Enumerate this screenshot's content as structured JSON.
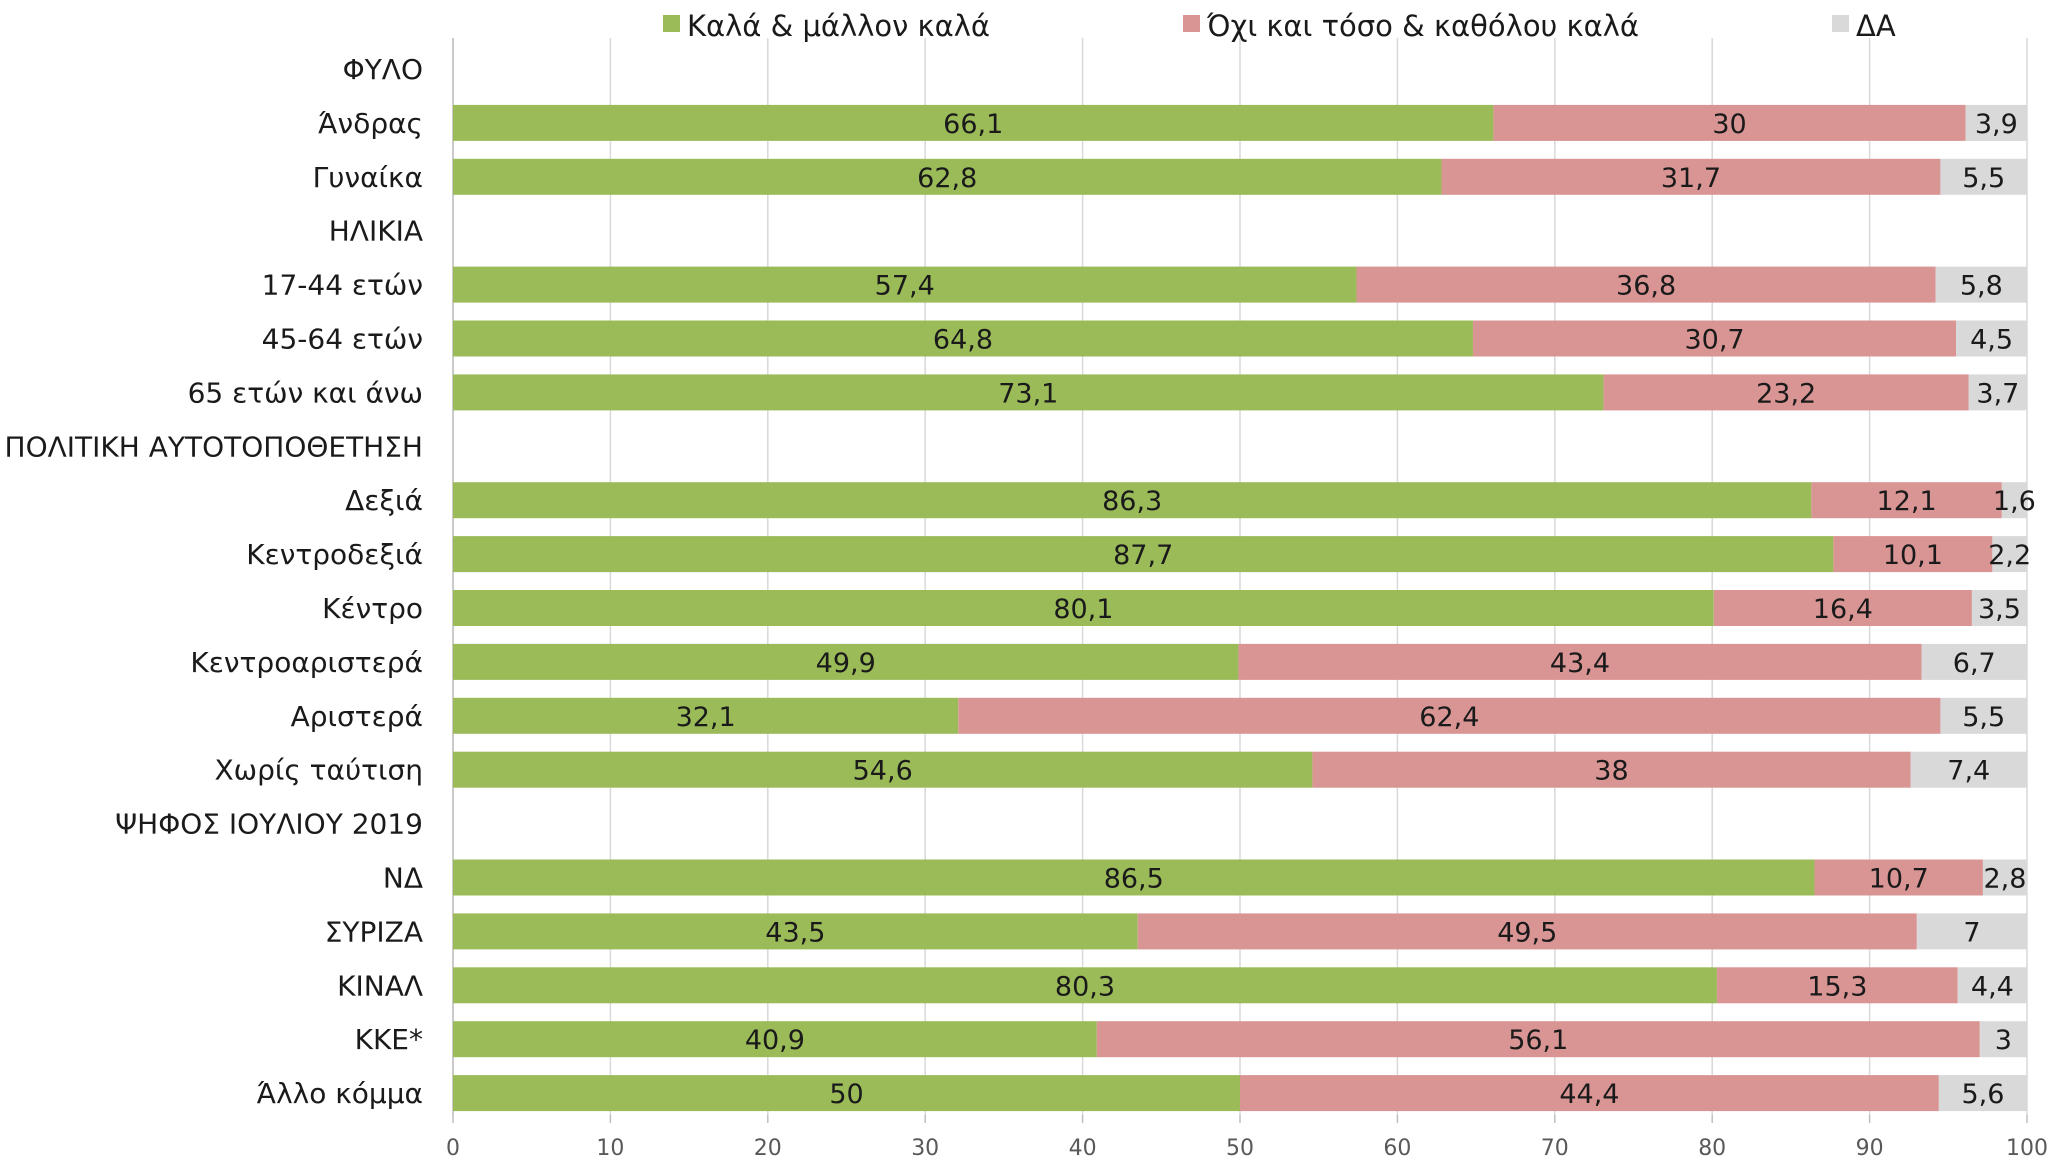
{
  "colors": {
    "good": "#9bbb59",
    "bad": "#d99594",
    "na": "#d9d9d9",
    "grid": "#d9d9d9",
    "axis": "#bfbfbf"
  },
  "chart_data": {
    "type": "bar",
    "orientation": "horizontal",
    "stacked": true,
    "xlim": [
      0,
      100
    ],
    "x_ticks": [
      "0",
      "10",
      "20",
      "30",
      "40",
      "50",
      "60",
      "70",
      "80",
      "90",
      "100"
    ],
    "grid": true,
    "legend_position": "top",
    "series": [
      {
        "name": "Καλά & μάλλον καλά",
        "color": "#9bbb59"
      },
      {
        "name": "Όχι και τόσο & καθόλου καλά",
        "color": "#d99594"
      },
      {
        "name": "ΔΑ",
        "color": "#d9d9d9"
      }
    ],
    "rows": [
      {
        "label": "ΦΥΛΟ",
        "header": true
      },
      {
        "label": "Άνδρας",
        "values": [
          66.1,
          30,
          3.9
        ],
        "labels": [
          "66,1",
          "30",
          "3,9"
        ]
      },
      {
        "label": "Γυναίκα",
        "values": [
          62.8,
          31.7,
          5.5
        ],
        "labels": [
          "62,8",
          "31,7",
          "5,5"
        ]
      },
      {
        "label": "ΗΛΙΚΙΑ",
        "header": true
      },
      {
        "label": "17-44 ετών",
        "values": [
          57.4,
          36.8,
          5.8
        ],
        "labels": [
          "57,4",
          "36,8",
          "5,8"
        ]
      },
      {
        "label": "45-64 ετών",
        "values": [
          64.8,
          30.7,
          4.5
        ],
        "labels": [
          "64,8",
          "30,7",
          "4,5"
        ]
      },
      {
        "label": "65 ετών και άνω",
        "values": [
          73.1,
          23.2,
          3.7
        ],
        "labels": [
          "73,1",
          "23,2",
          "3,7"
        ]
      },
      {
        "label": "ΠΟΛΙΤΙΚΗ ΑΥΤΟΤΟΠΟΘΕΤΗΣΗ",
        "header": true
      },
      {
        "label": "Δεξιά",
        "values": [
          86.3,
          12.1,
          1.6
        ],
        "labels": [
          "86,3",
          "12,1",
          "1,6"
        ]
      },
      {
        "label": "Κεντροδεξιά",
        "values": [
          87.7,
          10.1,
          2.2
        ],
        "labels": [
          "87,7",
          "10,1",
          "2,2"
        ]
      },
      {
        "label": "Κέντρο",
        "values": [
          80.1,
          16.4,
          3.5
        ],
        "labels": [
          "80,1",
          "16,4",
          "3,5"
        ]
      },
      {
        "label": "Κεντροαριστερά",
        "values": [
          49.9,
          43.4,
          6.7
        ],
        "labels": [
          "49,9",
          "43,4",
          "6,7"
        ]
      },
      {
        "label": "Αριστερά",
        "values": [
          32.1,
          62.4,
          5.5
        ],
        "labels": [
          "32,1",
          "62,4",
          "5,5"
        ]
      },
      {
        "label": "Χωρίς ταύτιση",
        "values": [
          54.6,
          38,
          7.4
        ],
        "labels": [
          "54,6",
          "38",
          "7,4"
        ]
      },
      {
        "label": "ΨΗΦΟΣ ΙΟΥΛΙΟΥ 2019",
        "header": true
      },
      {
        "label": "ΝΔ",
        "values": [
          86.5,
          10.7,
          2.8
        ],
        "labels": [
          "86,5",
          "10,7",
          "2,8"
        ]
      },
      {
        "label": "ΣΥΡΙΖΑ",
        "values": [
          43.5,
          49.5,
          7
        ],
        "labels": [
          "43,5",
          "49,5",
          "7"
        ]
      },
      {
        "label": "ΚΙΝΑΛ",
        "values": [
          80.3,
          15.3,
          4.4
        ],
        "labels": [
          "80,3",
          "15,3",
          "4,4"
        ]
      },
      {
        "label": "ΚΚΕ*",
        "values": [
          40.9,
          56.1,
          3
        ],
        "labels": [
          "40,9",
          "56,1",
          "3"
        ]
      },
      {
        "label": "Άλλο κόμμα",
        "values": [
          50,
          44.4,
          5.6
        ],
        "labels": [
          "50",
          "44,4",
          "5,6"
        ]
      }
    ]
  }
}
